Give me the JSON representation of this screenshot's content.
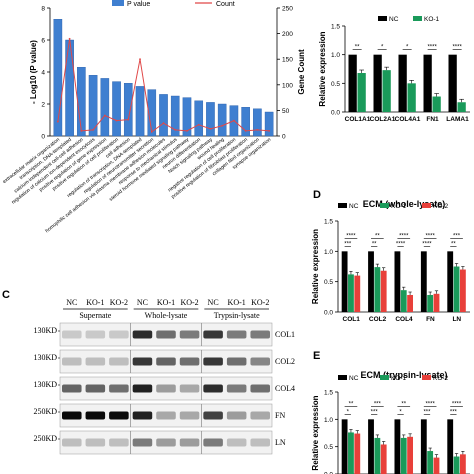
{
  "panels": {
    "a_label": "",
    "b_label": "",
    "c_label": "C",
    "d_label": "D",
    "e_label": "E"
  },
  "chart_data": [
    {
      "id": "enrichment",
      "type": "bar",
      "legend": [
        "P value",
        "Count"
      ],
      "ylabel_left": "- Log10 (P value)",
      "ylabel_right": "Gene Count",
      "ylim_left": [
        0,
        8
      ],
      "yticks_left": [
        0,
        2,
        4,
        6,
        8
      ],
      "ylim_right": [
        0,
        250
      ],
      "yticks_right": [
        0,
        50,
        100,
        150,
        200,
        250
      ],
      "categories": [
        "extracellular matrix organization",
        "transcription, DNA-templated",
        "calcium-independent cell-cell adhesion",
        "regulation of calcium ion-dependent exocytosis",
        "positive regulation of gene expression",
        "positive regulation of cell proliferation",
        "cell adhesion",
        "regulation of transcription, DNA-templated",
        "regulation of neurotransmitter secretion",
        "homophilic cell adhesion via plasma membrane adhesion molecules",
        "response to mechanical stimulus",
        "steroid hormone mediated signaling pathway",
        "neuron differentiation",
        "Notch signaling pathway",
        "wound healing",
        "negative regulation of cell proliferation",
        "positive regulation of fibroblast proliferation",
        "collagen fibril organization",
        "synapse organization"
      ],
      "pvalue": [
        7.3,
        6.0,
        4.3,
        3.8,
        3.6,
        3.4,
        3.3,
        3.1,
        2.9,
        2.6,
        2.5,
        2.4,
        2.2,
        2.1,
        2.0,
        1.9,
        1.8,
        1.7,
        1.5
      ],
      "count": [
        28,
        190,
        10,
        12,
        40,
        30,
        32,
        150,
        8,
        25,
        12,
        10,
        22,
        14,
        20,
        30,
        10,
        12,
        10
      ]
    },
    {
      "id": "expression-genes",
      "type": "bar",
      "ylabel": "Relative expression",
      "ylim": [
        0,
        1.5
      ],
      "yticks": [
        0.0,
        0.5,
        1.0,
        1.5
      ],
      "categories": [
        "COL1A1",
        "COL2A1",
        "COL4A1",
        "FN1",
        "LAMA1"
      ],
      "series": [
        {
          "name": "NC",
          "color": "#000000",
          "values": [
            1.0,
            1.0,
            1.0,
            1.0,
            1.0
          ]
        },
        {
          "name": "KO-1",
          "color": "#1a9a5a",
          "values": [
            0.68,
            0.73,
            0.5,
            0.27,
            0.17
          ]
        }
      ],
      "significance": [
        "**",
        "*",
        "*",
        "****",
        "****"
      ]
    },
    {
      "id": "ecm-whole",
      "type": "bar",
      "title": "ECM (whole-lysate)",
      "ylabel": "Relative expression",
      "ylim": [
        0,
        1.5
      ],
      "yticks": [
        0.0,
        0.5,
        1.0,
        1.5
      ],
      "categories": [
        "COL1",
        "COL2",
        "COL4",
        "FN",
        "LN"
      ],
      "series": [
        {
          "name": "NC",
          "color": "#000000",
          "values": [
            1.0,
            1.0,
            1.0,
            1.0,
            1.0
          ]
        },
        {
          "name": "KO-1",
          "color": "#1a9a5a",
          "values": [
            0.62,
            0.74,
            0.36,
            0.28,
            0.75
          ]
        },
        {
          "name": "KO-2",
          "color": "#e8403a",
          "values": [
            0.6,
            0.68,
            0.28,
            0.3,
            0.7
          ]
        }
      ],
      "significance": [
        [
          "***",
          "****"
        ],
        [
          "**",
          "**"
        ],
        [
          "****",
          "****"
        ],
        [
          "****",
          "****"
        ],
        [
          "**",
          "***"
        ]
      ]
    },
    {
      "id": "ecm-trypsin",
      "type": "bar",
      "title": "ECM (trypsin-lysate)",
      "ylabel": "Relative expression",
      "ylim": [
        0,
        1.5
      ],
      "yticks": [
        0.0,
        0.5,
        1.0,
        1.5
      ],
      "categories": [
        "",
        "",
        "",
        "",
        ""
      ],
      "series": [
        {
          "name": "NC",
          "color": "#000000",
          "values": [
            1.0,
            1.0,
            1.0,
            1.0,
            1.0
          ]
        },
        {
          "name": "KO-1",
          "color": "#1a9a5a",
          "values": [
            0.76,
            0.66,
            0.66,
            0.42,
            0.32
          ]
        },
        {
          "name": "KO-2",
          "color": "#e8403a",
          "values": [
            0.74,
            0.54,
            0.68,
            0.3,
            0.36
          ]
        }
      ],
      "significance": [
        [
          "*",
          "**"
        ],
        [
          "***",
          "***"
        ],
        [
          "*",
          "**"
        ],
        [
          "***",
          "****"
        ],
        [
          "***",
          "****"
        ]
      ]
    }
  ],
  "western_blot": {
    "lane_labels": [
      "NC",
      "KO-1",
      "KO-2",
      "NC",
      "KO-1",
      "KO-2",
      "NC",
      "KO-1",
      "KO-2"
    ],
    "groups": [
      "Supernate",
      "Whole-lysate",
      "Trypsin-lysate"
    ],
    "markers": [
      "130KD",
      "130KD",
      "130KD",
      "250KD",
      "250KD"
    ],
    "proteins": [
      "COL1",
      "COL2",
      "COL4",
      "FN",
      "LN"
    ],
    "intensity": [
      [
        0.15,
        0.15,
        0.15,
        0.85,
        0.55,
        0.5,
        0.8,
        0.5,
        0.5
      ],
      [
        0.2,
        0.2,
        0.2,
        0.8,
        0.6,
        0.55,
        0.8,
        0.55,
        0.45
      ],
      [
        0.6,
        0.6,
        0.55,
        0.9,
        0.35,
        0.3,
        0.85,
        0.5,
        0.55
      ],
      [
        1.0,
        1.0,
        1.0,
        0.9,
        0.3,
        0.3,
        0.75,
        0.35,
        0.3
      ],
      [
        0.2,
        0.2,
        0.2,
        0.5,
        0.35,
        0.35,
        0.5,
        0.2,
        0.2
      ]
    ]
  }
}
